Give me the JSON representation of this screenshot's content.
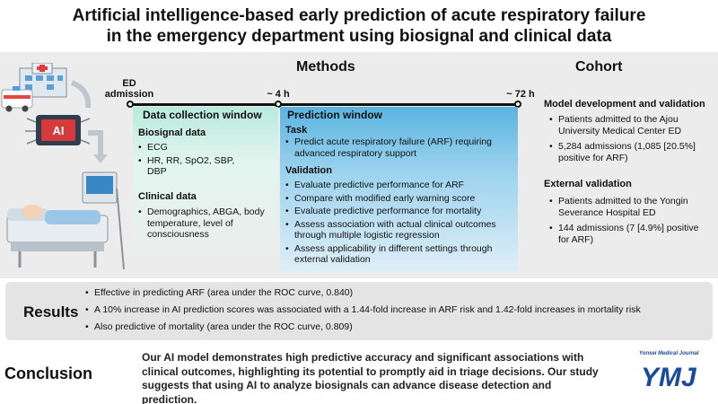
{
  "title_line1": "Artificial intelligence-based early prediction of acute respiratory failure",
  "title_line2": "in the emergency department using biosignal and clinical data",
  "methods_heading": "Methods",
  "cohort_heading": "Cohort",
  "illustration": {
    "monitor_text": "AI"
  },
  "timeline": {
    "start_label_line1": "ED",
    "start_label_line2": "admission",
    "mid_label": "~ 4 h",
    "end_label": "~ 72 h"
  },
  "data_collection": {
    "title": "Data collection window",
    "biosignal_heading": "Biosignal data",
    "biosignal_items": [
      "ECG",
      "HR, RR, SpO2, SBP, DBP"
    ],
    "clinical_heading": "Clinical data",
    "clinical_items": [
      "Demographics, ABGA, body temperature, level of consciousness"
    ]
  },
  "prediction": {
    "title": "Prediction window",
    "task_heading": "Task",
    "task_items": [
      "Predict acute respiratory failure (ARF) requiring advanced respiratory support"
    ],
    "validation_heading": "Validation",
    "validation_items": [
      "Evaluate predictive performance for ARF",
      "Compare with modified early warning score",
      "Evaluate predictive performance for mortality",
      "Assess association with actual clinical outcomes through multiple logistic regression",
      "Assess applicability in different settings through external validation"
    ]
  },
  "cohort": {
    "dev_heading": "Model development and validation",
    "dev_items": [
      "Patients admitted to the Ajou University Medical Center ED",
      "5,284 admissions (1,085 [20.5%] positive for ARF)"
    ],
    "ext_heading": "External validation",
    "ext_items": [
      "Patients admitted to the Yongin Severance Hospital ED",
      "144 admissions (7 [4.9%] positive for ARF)"
    ]
  },
  "results": {
    "label": "Results",
    "items": [
      "Effective in predicting ARF (area under the ROC curve, 0.840)",
      "A 10% increase in AI prediction scores was associated with a 1.44-fold increase in ARF risk and 1.42-fold increases in mortality risk",
      "Also predictive of mortality (area under the ROC curve, 0.809)"
    ]
  },
  "conclusion": {
    "label": "Conclusion",
    "text": "Our AI model demonstrates high predictive accuracy and significant associations with clinical outcomes, highlighting its potential to promptly aid in triage decisions. Our study suggests that using AI to analyze biosignals can advance disease detection and prediction."
  },
  "journal": {
    "small_name": "Yonsei Medical Journal",
    "logo_text": "YMJ"
  },
  "colors": {
    "data_window": "#b9eadd",
    "prediction_window": "#5ab4e0",
    "journal_blue": "#1a4aa0"
  }
}
